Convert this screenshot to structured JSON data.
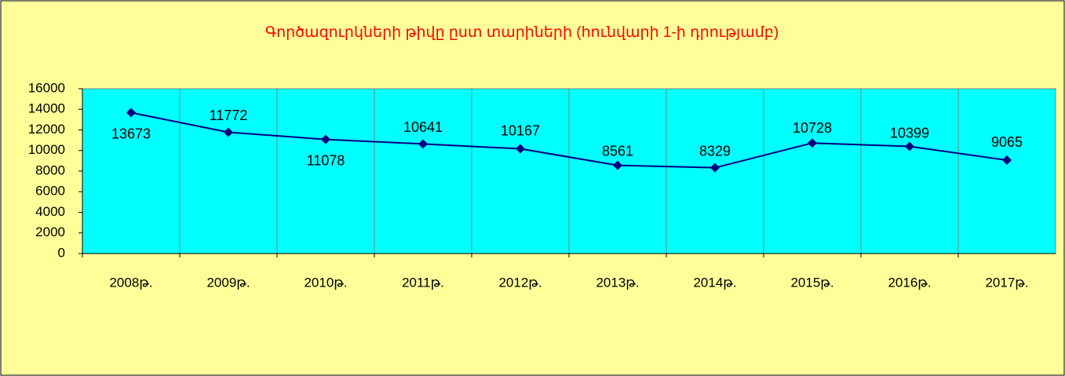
{
  "chart_data": {
    "type": "line",
    "title": "Գործազուրկների թիվը ըստ տարիների  (հունվարի 1-ի դրությամբ)",
    "categories": [
      "2008թ.",
      "2009թ.",
      "2010թ.",
      "2011թ.",
      "2012թ.",
      "2013թ.",
      "2014թ.",
      "2015թ.",
      "2016թ.",
      "2017թ."
    ],
    "series": [
      {
        "name": "Գործազուրկների թիվը",
        "color": "#000080",
        "values": [
          13673,
          11772,
          11078,
          10641,
          10167,
          8561,
          8329,
          10728,
          10399,
          9065
        ]
      }
    ],
    "ylim": [
      0,
      16000
    ],
    "yticks": [
      0,
      2000,
      4000,
      6000,
      8000,
      10000,
      12000,
      14000,
      16000
    ],
    "grid": false
  }
}
